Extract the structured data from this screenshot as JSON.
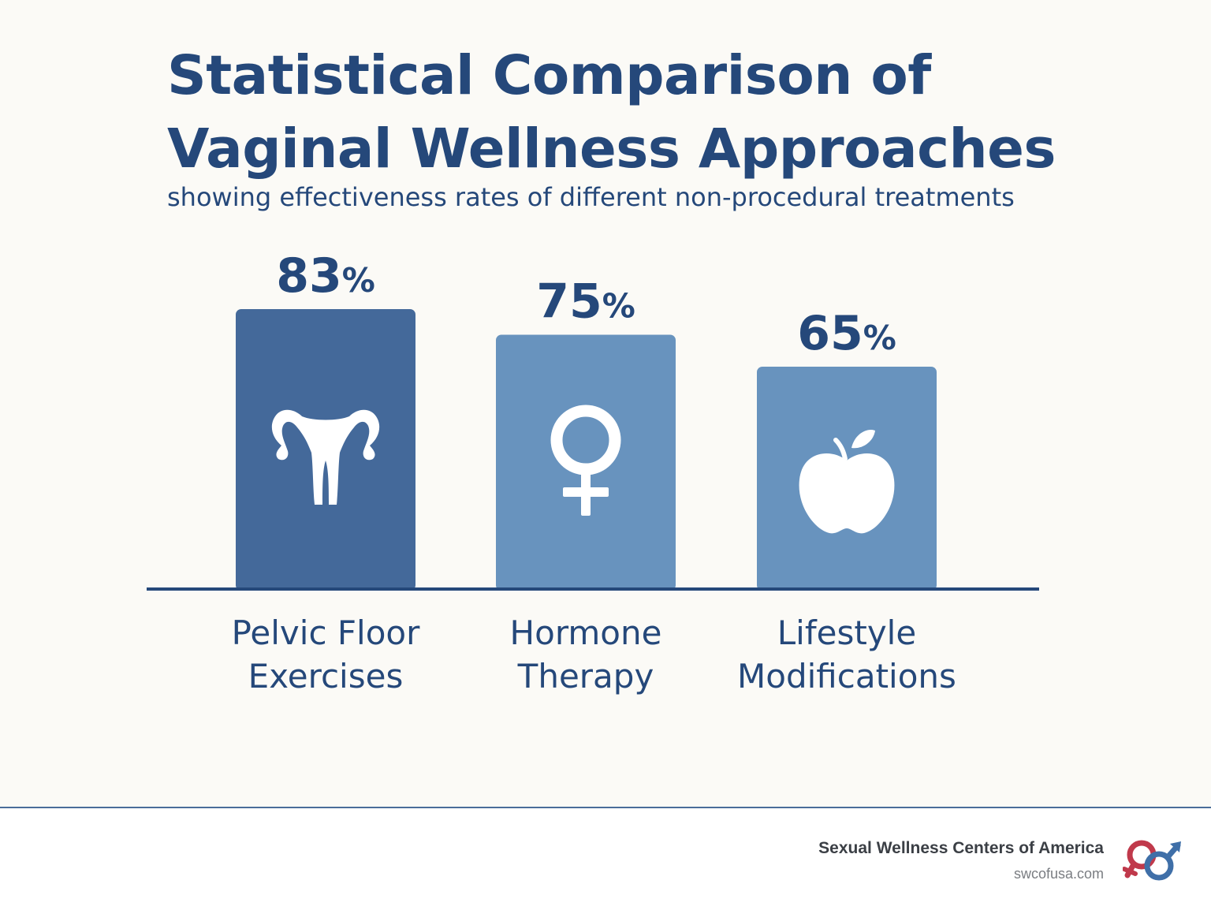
{
  "header": {
    "title_line1": "Statistical Comparison of",
    "title_line2": "Vaginal Wellness Approaches",
    "subtitle": "showing effectiveness rates of different non-procedural treatments"
  },
  "chart_data": {
    "type": "bar",
    "title": "Statistical Comparison of Vaginal Wellness Approaches",
    "subtitle": "showing effectiveness rates of different non-procedural treatments",
    "categories": [
      [
        "Pelvic Floor",
        "Exercises"
      ],
      [
        "Hormone",
        "Therapy"
      ],
      [
        "Lifestyle",
        "Modifications"
      ]
    ],
    "values": [
      83,
      75,
      65
    ],
    "value_labels": [
      "83%",
      "75%",
      "65%"
    ],
    "bar_icons": [
      "uterus-icon",
      "female-symbol-icon",
      "apple-icon"
    ],
    "bar_colors": [
      "#44699a",
      "#6893be",
      "#6893be"
    ],
    "ylim": [
      0,
      100
    ],
    "xlabel": "",
    "ylabel": "",
    "grid": false,
    "legend": "none"
  },
  "colors": {
    "text": "#25487a",
    "bar_primary": "#44699a",
    "bar_secondary": "#6893be",
    "axis": "#25487a",
    "logo_red": "#c0394b",
    "logo_blue": "#3f6fa8"
  },
  "footer": {
    "brand": "Sexual Wellness Centers of America",
    "url": "swcofusa.com",
    "logo_icon": "gender-symbols-logo-icon"
  }
}
